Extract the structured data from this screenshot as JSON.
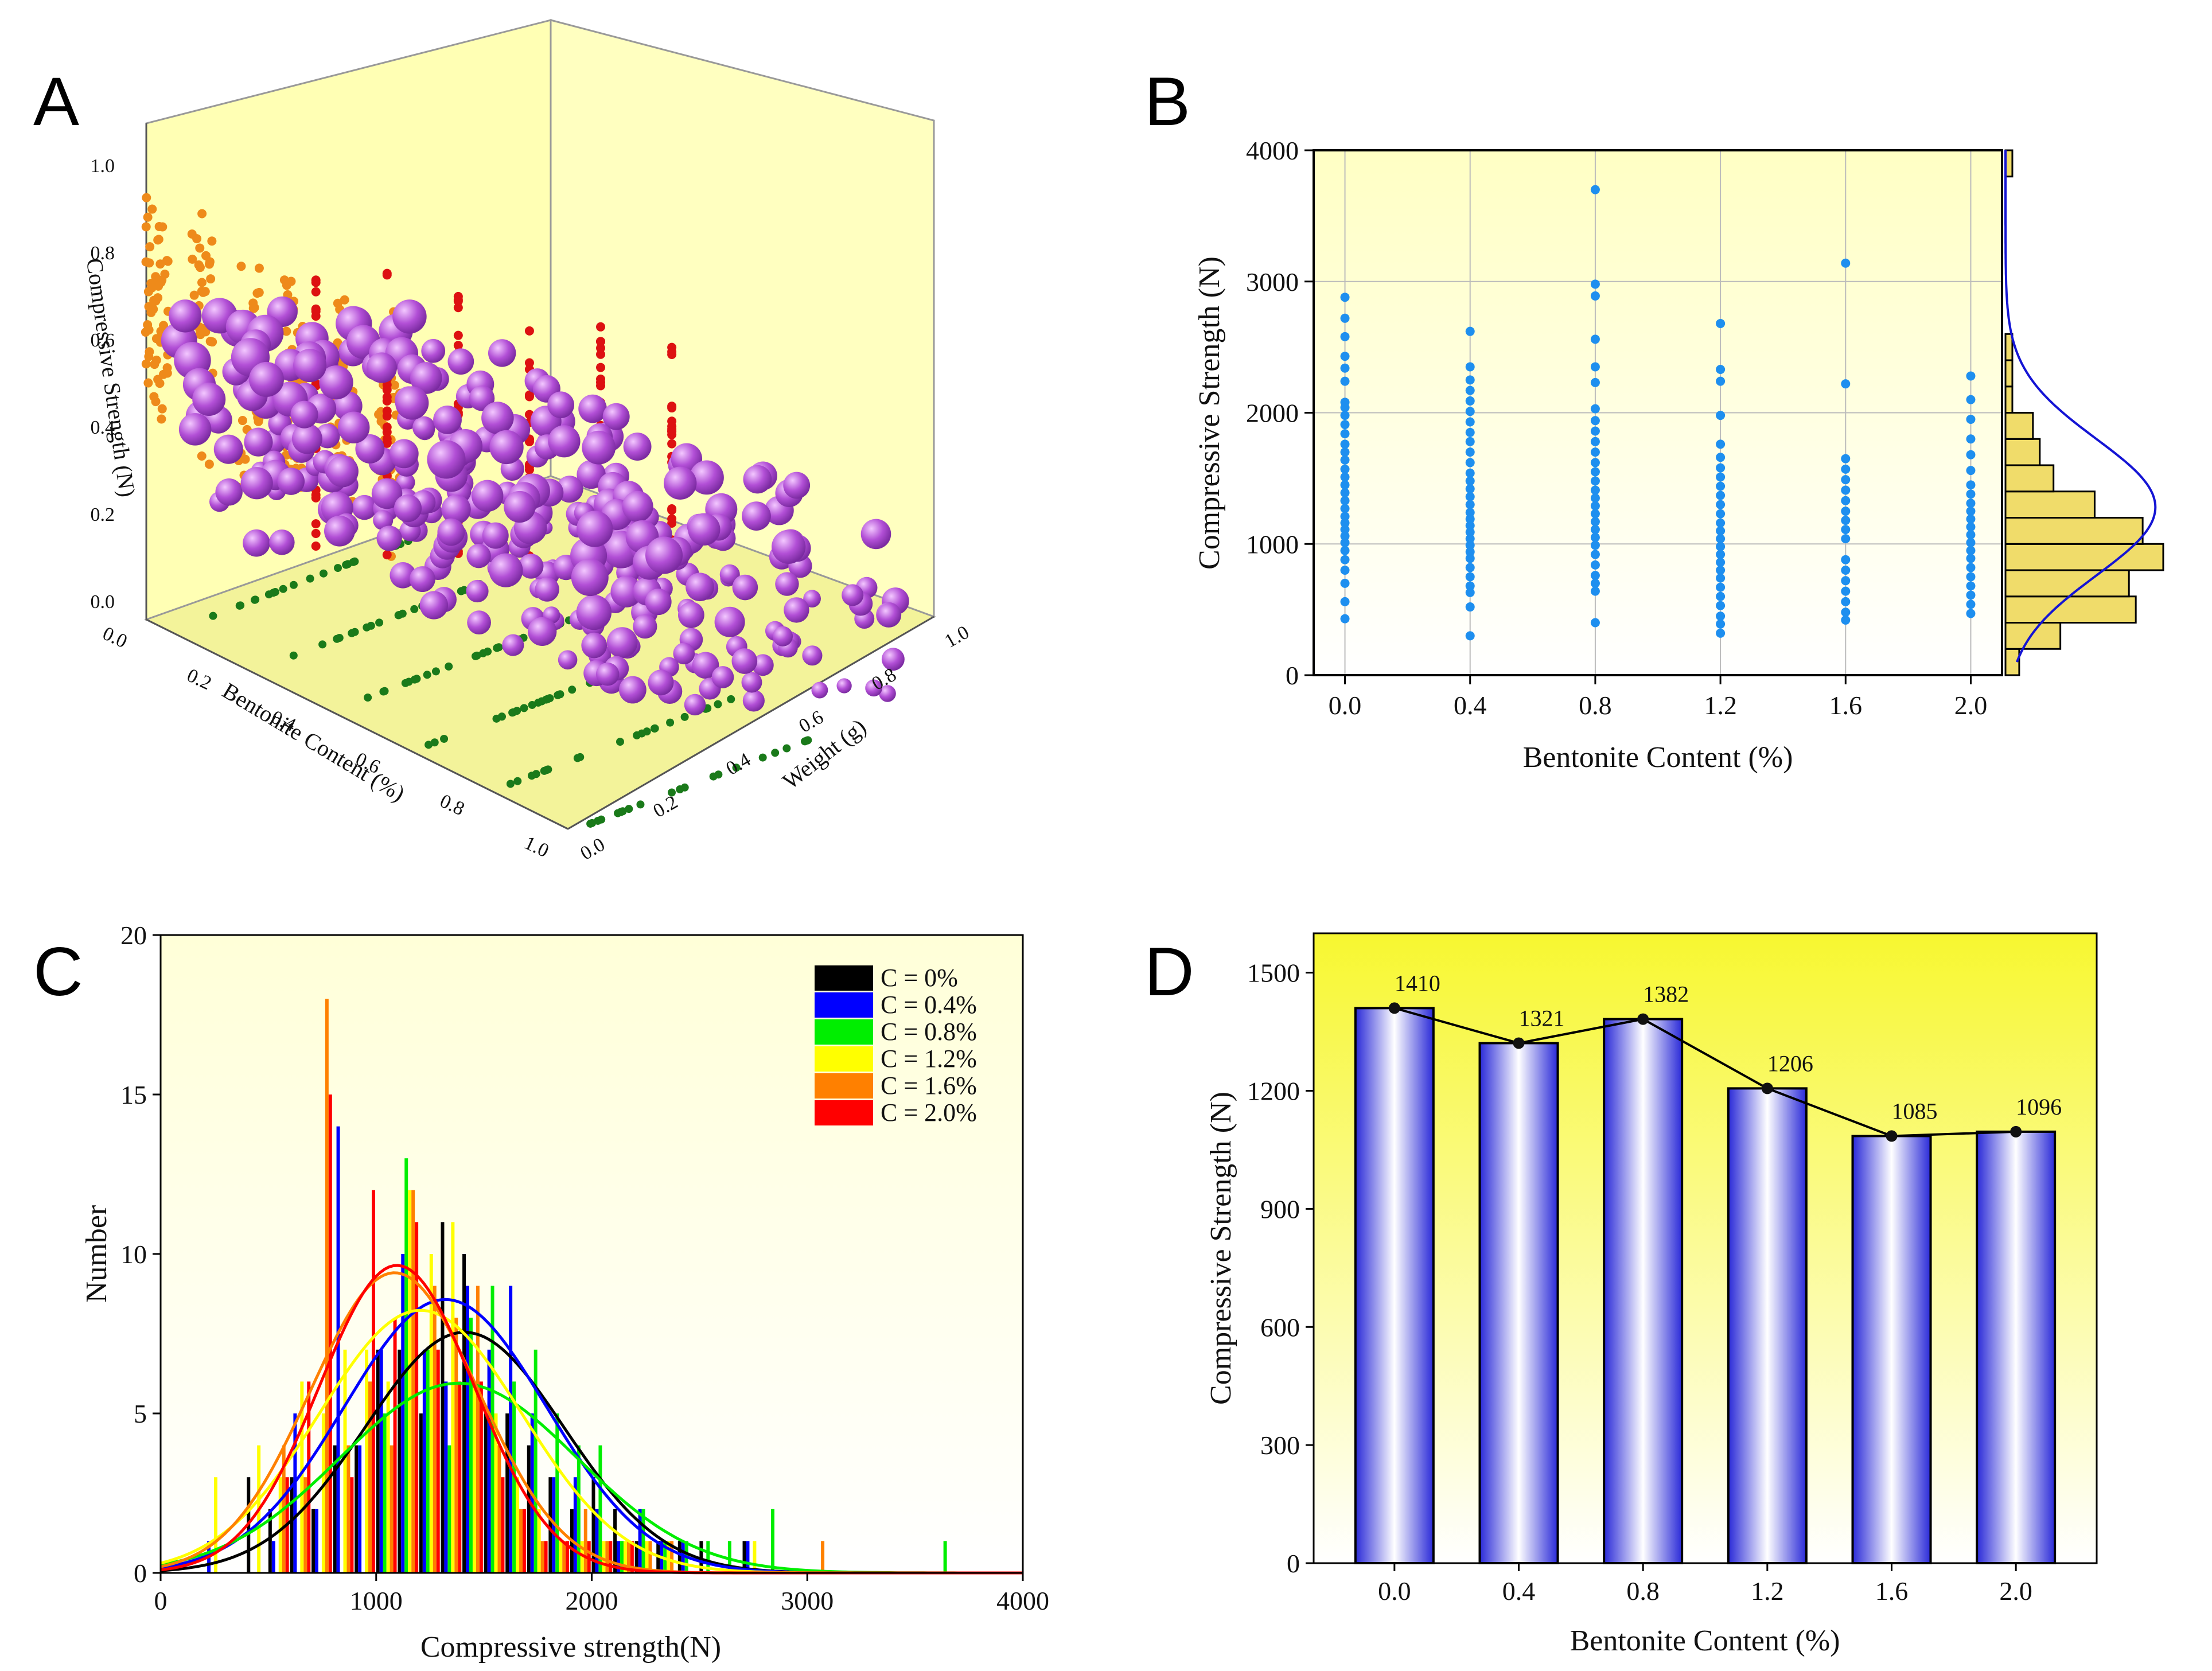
{
  "panels": {
    "A": "A",
    "B": "B",
    "C": "C",
    "D": "D"
  },
  "chart_data": [
    {
      "id": "A",
      "type": "scatter",
      "title": "",
      "xlabel": "Bentonite Content (%)",
      "ylabel": "Weight (g)",
      "zlabel": "Compressive Strength (N)",
      "xticks": [
        "0.0",
        "0.2",
        "0.4",
        "0.6",
        "0.8",
        "1.0"
      ],
      "yticks": [
        "0.0",
        "0.2",
        "0.4",
        "0.6",
        "0.8",
        "1.0"
      ],
      "zticks": [
        "0.0",
        "0.2",
        "0.4",
        "0.6",
        "0.8",
        "1.0"
      ],
      "xlim": [
        0,
        1
      ],
      "ylim": [
        0,
        1
      ],
      "zlim": [
        0,
        1
      ],
      "bentonite_levels": [
        0.0,
        0.2,
        0.4,
        0.6,
        0.8,
        1.0
      ],
      "colors": {
        "main": "#b24fd6",
        "projection_xz": "#ee8a1a",
        "projection_yz": "#dd1111",
        "projection_xy": "#1a7a1a",
        "wall": "#ffffb4",
        "floor": "#f3f39a"
      }
    },
    {
      "id": "B",
      "type": "scatter",
      "title": "",
      "xlabel": "Bentonite Content (%)",
      "ylabel": "Compressive Strength (N)",
      "xticks": [
        "0.0",
        "0.4",
        "0.8",
        "1.2",
        "1.6",
        "2.0"
      ],
      "yticks": [
        "0",
        "1000",
        "2000",
        "3000",
        "4000"
      ],
      "xlim": [
        -0.1,
        2.1
      ],
      "ylim": [
        0,
        4000
      ],
      "grid": true,
      "series": [
        {
          "x": 0.0,
          "values": [
            430,
            560,
            700,
            800,
            880,
            950,
            1010,
            1060,
            1110,
            1160,
            1210,
            1270,
            1330,
            1390,
            1450,
            1510,
            1570,
            1640,
            1700,
            1760,
            1840,
            1910,
            1980,
            2040,
            2080,
            2240,
            2340,
            2430,
            2580,
            2720,
            2880
          ]
        },
        {
          "x": 0.4,
          "values": [
            300,
            520,
            630,
            680,
            750,
            820,
            890,
            940,
            990,
            1040,
            1090,
            1140,
            1190,
            1240,
            1300,
            1360,
            1420,
            1480,
            1540,
            1620,
            1700,
            1780,
            1850,
            1930,
            2010,
            2090,
            2170,
            2250,
            2350,
            2620
          ]
        },
        {
          "x": 0.8,
          "values": [
            400,
            640,
            700,
            760,
            840,
            920,
            990,
            1050,
            1110,
            1170,
            1230,
            1290,
            1350,
            1410,
            1480,
            1550,
            1620,
            1700,
            1780,
            1860,
            1940,
            2030,
            2230,
            2350,
            2560,
            2890,
            2980,
            3700
          ]
        },
        {
          "x": 1.2,
          "values": [
            320,
            390,
            450,
            530,
            600,
            670,
            740,
            800,
            860,
            920,
            980,
            1040,
            1100,
            1160,
            1230,
            1300,
            1370,
            1440,
            1510,
            1580,
            1660,
            1760,
            1980,
            2240,
            2330,
            2680
          ]
        },
        {
          "x": 1.6,
          "values": [
            420,
            480,
            560,
            640,
            720,
            800,
            880,
            1040,
            1110,
            1180,
            1250,
            1330,
            1410,
            1490,
            1570,
            1650,
            2220,
            3140
          ]
        },
        {
          "x": 2.0,
          "values": [
            470,
            540,
            610,
            680,
            750,
            820,
            890,
            950,
            1010,
            1070,
            1130,
            1190,
            1250,
            1310,
            1380,
            1450,
            1560,
            1680,
            1800,
            1950,
            2100,
            2280
          ]
        }
      ],
      "marginal_histogram": {
        "bin_width": 200,
        "bins": [
          0,
          200,
          400,
          600,
          800,
          1000,
          1200,
          1400,
          1600,
          1800,
          2000,
          2200,
          2400,
          2600,
          2800,
          3000,
          3200,
          3400,
          3600,
          3800
        ],
        "counts": [
          2,
          8,
          19,
          18,
          23,
          20,
          13,
          7,
          5,
          4,
          1,
          1,
          1,
          0,
          0,
          0,
          0,
          0,
          0,
          1
        ],
        "fit": "normal"
      }
    },
    {
      "id": "C",
      "type": "bar",
      "title": "",
      "xlabel": "Compressive strength(N)",
      "ylabel": "Number",
      "xticks": [
        "0",
        "1000",
        "2000",
        "3000",
        "4000"
      ],
      "yticks": [
        "0",
        "5",
        "10",
        "15",
        "20"
      ],
      "xlim": [
        0,
        4000
      ],
      "ylim": [
        0,
        20
      ],
      "bin_width": 100,
      "bins": [
        200,
        300,
        400,
        500,
        600,
        700,
        800,
        900,
        1000,
        1100,
        1200,
        1300,
        1400,
        1500,
        1600,
        1700,
        1800,
        1900,
        2000,
        2100,
        2200,
        2300,
        2400,
        2500,
        2600,
        2700,
        2800,
        2900,
        3000,
        3100,
        3200,
        3300,
        3400,
        3500,
        3600
      ],
      "series": [
        {
          "name": "C = 0%",
          "color": "#000000",
          "mean": 1410,
          "sd": 460,
          "values": [
            0,
            0,
            3,
            2,
            3,
            2,
            4,
            4,
            7,
            7,
            5,
            11,
            10,
            5,
            5,
            4,
            3,
            2,
            3,
            2,
            1,
            1,
            1,
            1,
            0,
            1,
            0,
            0,
            0,
            0,
            0,
            0,
            0,
            0,
            0
          ]
        },
        {
          "name": "C = 0.4%",
          "color": "#0000ff",
          "mean": 1321,
          "sd": 470,
          "values": [
            1,
            0,
            0,
            1,
            5,
            2,
            14,
            4,
            7,
            10,
            7,
            6,
            9,
            7,
            9,
            5,
            3,
            3,
            2,
            1,
            2,
            1,
            1,
            0,
            0,
            1,
            0,
            0,
            0,
            0,
            0,
            0,
            0,
            0,
            0
          ]
        },
        {
          "name": "C = 0.8%",
          "color": "#00ee00",
          "mean": 1382,
          "sd": 550,
          "values": [
            0,
            0,
            0,
            0,
            0,
            0,
            0,
            0,
            5,
            13,
            7,
            4,
            8,
            9,
            6,
            7,
            5,
            4,
            4,
            1,
            2,
            1,
            1,
            1,
            1,
            0,
            2,
            0,
            0,
            0,
            0,
            0,
            0,
            0,
            1
          ]
        },
        {
          "name": "C = 1.2%",
          "color": "#ffff00",
          "mean": 1206,
          "sd": 470,
          "values": [
            3,
            0,
            4,
            3,
            6,
            5,
            7,
            7,
            6,
            12,
            10,
            11,
            6,
            5,
            3,
            2,
            1,
            1,
            1,
            1,
            1,
            1,
            0,
            0,
            0,
            1,
            0,
            0,
            0,
            0,
            0,
            0,
            0,
            0,
            0
          ]
        },
        {
          "name": "C = 1.6%",
          "color": "#ff8000",
          "mean": 1085,
          "sd": 390,
          "values": [
            0,
            0,
            0,
            4,
            3,
            18,
            4,
            6,
            4,
            12,
            9,
            8,
            9,
            4,
            2,
            1,
            1,
            2,
            1,
            1,
            1,
            1,
            0,
            0,
            0,
            0,
            0,
            0,
            1,
            0,
            0,
            0,
            0,
            0,
            0
          ]
        },
        {
          "name": "C = 2.0%",
          "color": "#ff0000",
          "mean": 1096,
          "sd": 360,
          "values": [
            0,
            0,
            0,
            3,
            6,
            15,
            3,
            12,
            8,
            11,
            7,
            6,
            6,
            3,
            2,
            1,
            1,
            1,
            1,
            1,
            0,
            0,
            0,
            0,
            0,
            0,
            0,
            0,
            0,
            0,
            0,
            0,
            0,
            0,
            0
          ]
        }
      ],
      "legend": "top-right"
    },
    {
      "id": "D",
      "type": "bar",
      "title": "",
      "xlabel": "Bentonite Content (%)",
      "ylabel": "Compressive Strength (N)",
      "categories": [
        "0.0",
        "0.4",
        "0.8",
        "1.2",
        "1.6",
        "2.0"
      ],
      "values": [
        1410,
        1321,
        1382,
        1206,
        1085,
        1096
      ],
      "data_labels": [
        "1410",
        "1321",
        "1382",
        "1206",
        "1085",
        "1096"
      ],
      "yticks": [
        "0",
        "300",
        "600",
        "900",
        "1200",
        "1500"
      ],
      "ylim": [
        0,
        1600
      ],
      "overlay": "line"
    }
  ]
}
